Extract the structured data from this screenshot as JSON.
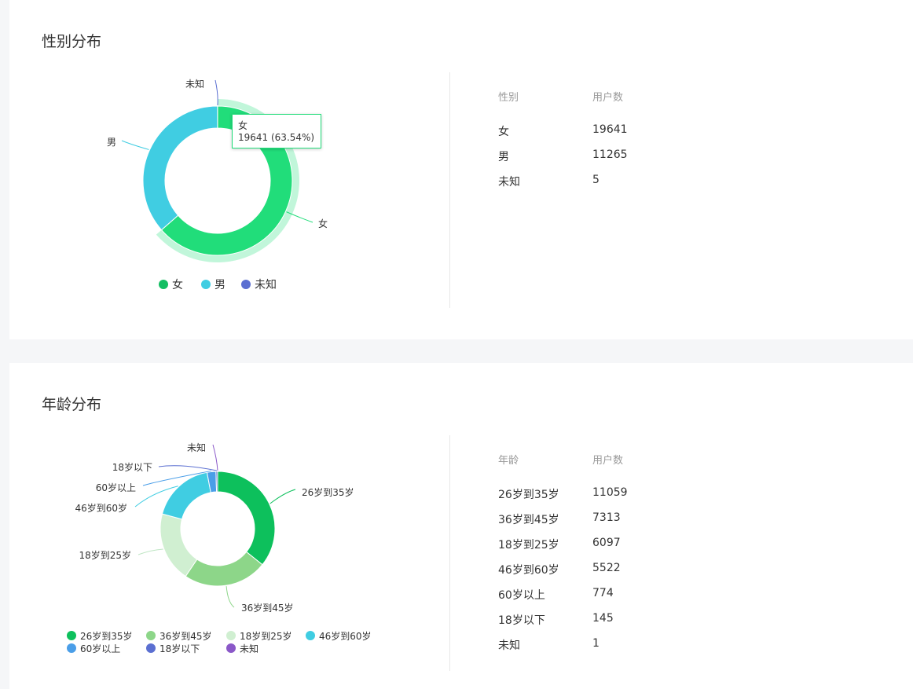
{
  "gender_card": {
    "title": "性别分布",
    "table_headers": [
      "性别",
      "用户数"
    ],
    "table_rows": [
      [
        "女",
        "19641"
      ],
      [
        "男",
        "11265"
      ],
      [
        "未知",
        "5"
      ]
    ],
    "tooltip": {
      "name": "女",
      "value": "19641 (63.54%)"
    }
  },
  "age_card": {
    "title": "年龄分布",
    "table_headers": [
      "年龄",
      "用户数"
    ],
    "table_rows": [
      [
        "26岁到35岁",
        "11059"
      ],
      [
        "36岁到45岁",
        "7313"
      ],
      [
        "18岁到25岁",
        "6097"
      ],
      [
        "46岁到60岁",
        "5522"
      ],
      [
        "60岁以上",
        "774"
      ],
      [
        "18岁以下",
        "145"
      ],
      [
        "未知",
        "1"
      ]
    ]
  },
  "chart_data": [
    {
      "type": "pie",
      "title": "性别分布",
      "categories": [
        "女",
        "男",
        "未知"
      ],
      "values": [
        19641,
        11265,
        5
      ],
      "colors": [
        "#21dd7a",
        "#40cde2",
        "#5b6fd1"
      ],
      "legend_colors": [
        "#13be62",
        "#40cde2",
        "#5b6fd1"
      ],
      "highlight": "女",
      "legend": "bottom"
    },
    {
      "type": "pie",
      "title": "年龄分布",
      "categories": [
        "26岁到35岁",
        "36岁到45岁",
        "18岁到25岁",
        "46岁到60岁",
        "60岁以上",
        "18岁以下",
        "未知"
      ],
      "values": [
        11059,
        7313,
        6097,
        5522,
        774,
        145,
        1
      ],
      "colors": [
        "#0dc05c",
        "#8dd689",
        "#d0efd1",
        "#40cde2",
        "#4a9ee8",
        "#5b6fd1",
        "#8a58c8"
      ],
      "legend": "bottom"
    }
  ]
}
